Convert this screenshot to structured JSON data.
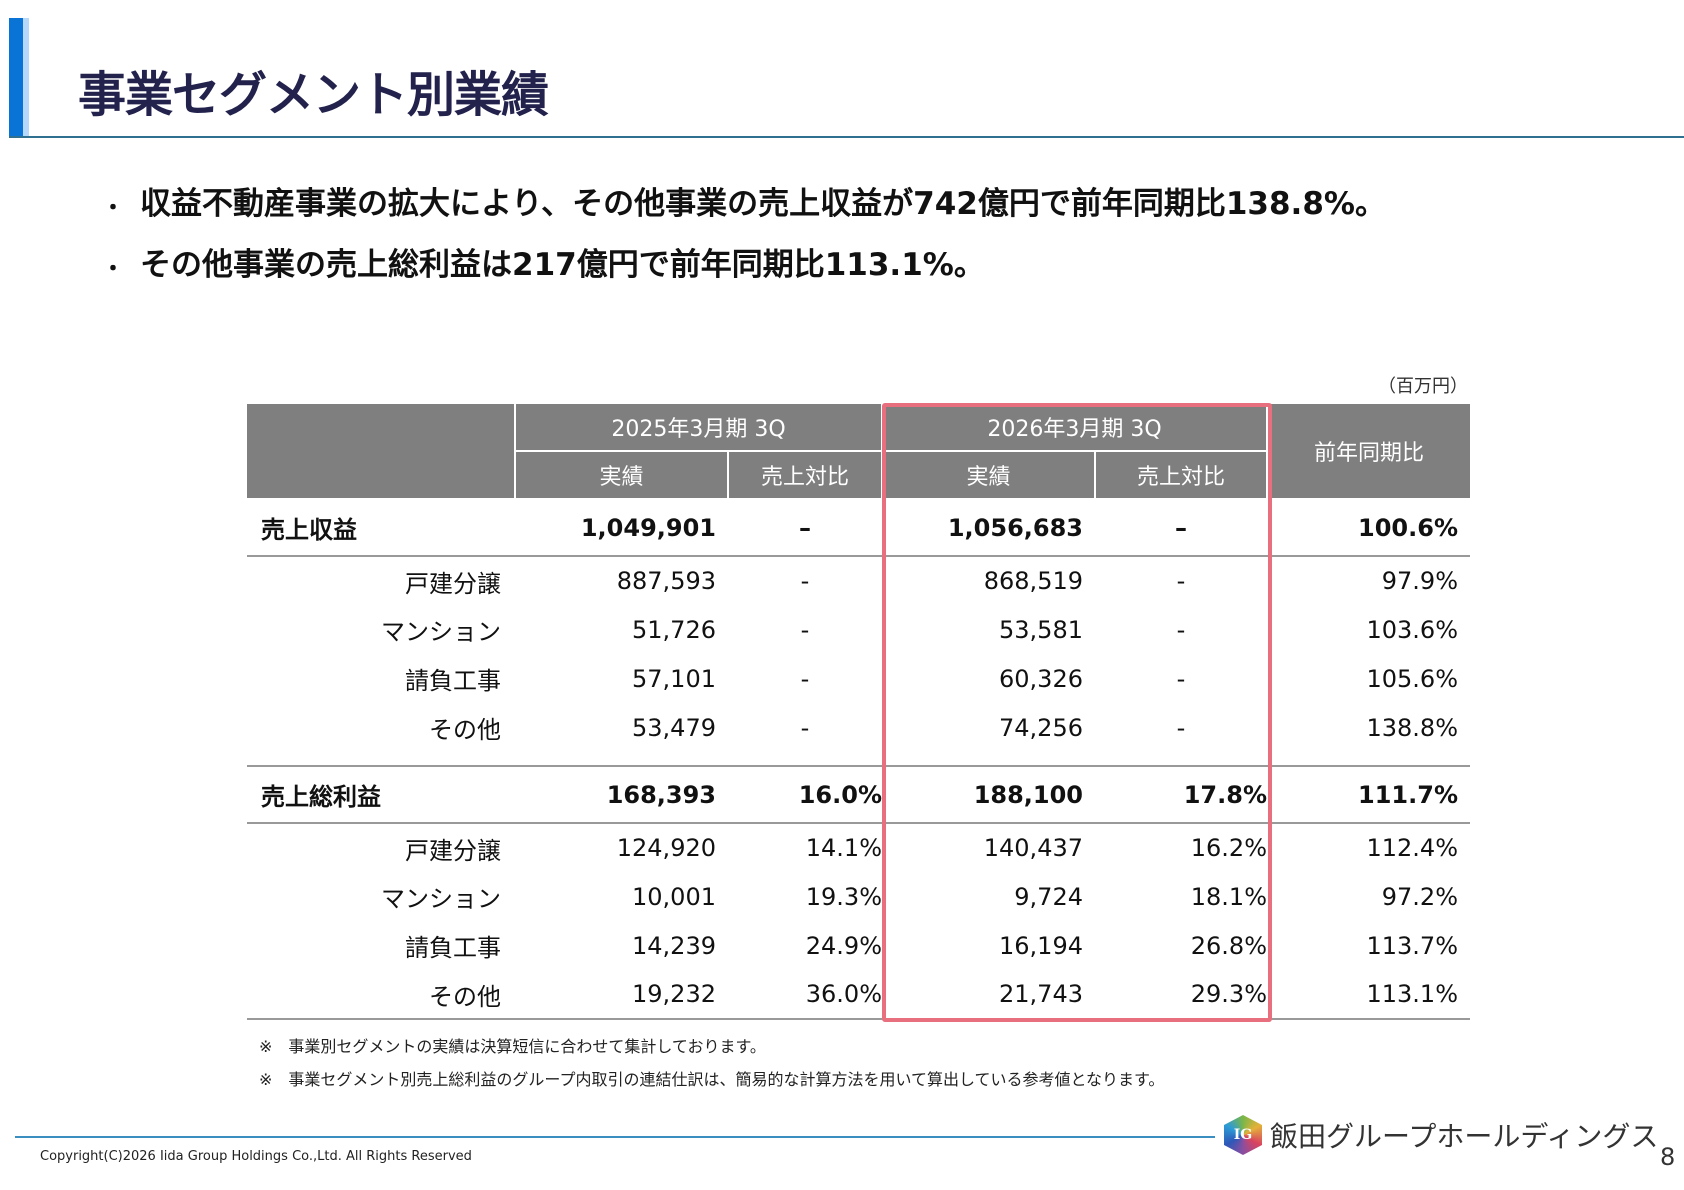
{
  "title": "事業セグメント別業績",
  "bullets": [
    "収益不動産事業の拡大により、その他事業の売上収益が742億円で前年同期比138.8%。",
    "その他事業の売上総利益は217億円で前年同期比113.1%。"
  ],
  "bullet_symbol": "・",
  "unit": "（百万円）",
  "table": {
    "period_prev": "2025年3月期 3Q",
    "period_curr": "2026年3月期 3Q",
    "yoy": "前年同期比",
    "actual": "実績",
    "ratio": "売上対比",
    "revenue": {
      "label": "売上収益",
      "prev": "1,049,901",
      "prev_ratio": "–",
      "curr": "1,056,683",
      "curr_ratio": "–",
      "yoy": "100.6%"
    },
    "revenue_rows": [
      {
        "label": "戸建分譲",
        "prev": "887,593",
        "prev_ratio": "-",
        "curr": "868,519",
        "curr_ratio": "-",
        "yoy": "97.9%"
      },
      {
        "label": "マンション",
        "prev": "51,726",
        "prev_ratio": "-",
        "curr": "53,581",
        "curr_ratio": "-",
        "yoy": "103.6%"
      },
      {
        "label": "請負工事",
        "prev": "57,101",
        "prev_ratio": "-",
        "curr": "60,326",
        "curr_ratio": "-",
        "yoy": "105.6%"
      },
      {
        "label": "その他",
        "prev": "53,479",
        "prev_ratio": "-",
        "curr": "74,256",
        "curr_ratio": "-",
        "yoy": "138.8%"
      }
    ],
    "gross": {
      "label": "売上総利益",
      "prev": "168,393",
      "prev_ratio": "16.0%",
      "curr": "188,100",
      "curr_ratio": "17.8%",
      "yoy": "111.7%"
    },
    "gross_rows": [
      {
        "label": "戸建分譲",
        "prev": "124,920",
        "prev_ratio": "14.1%",
        "curr": "140,437",
        "curr_ratio": "16.2%",
        "yoy": "112.4%"
      },
      {
        "label": "マンション",
        "prev": "10,001",
        "prev_ratio": "19.3%",
        "curr": "9,724",
        "curr_ratio": "18.1%",
        "yoy": "97.2%"
      },
      {
        "label": "請負工事",
        "prev": "14,239",
        "prev_ratio": "24.9%",
        "curr": "16,194",
        "curr_ratio": "26.8%",
        "yoy": "113.7%"
      },
      {
        "label": "その他",
        "prev": "19,232",
        "prev_ratio": "36.0%",
        "curr": "21,743",
        "curr_ratio": "29.3%",
        "yoy": "113.1%"
      }
    ]
  },
  "notes": [
    "※　事業別セグメントの実績は決算短信に合わせて集計しております。",
    "※　事業セグメント別売上総利益のグループ内取引の連結仕訳は、簡易的な計算方法を用いて算出している参考値となります。"
  ],
  "highlight_color": "#e8707e",
  "footer": {
    "copyright": "Copyright(C)2026 Iida Group Holdings Co.,Ltd. All Rights Reserved",
    "logo_text": "飯田グループホールディングス",
    "logo_mark": "IG",
    "page": "8"
  }
}
